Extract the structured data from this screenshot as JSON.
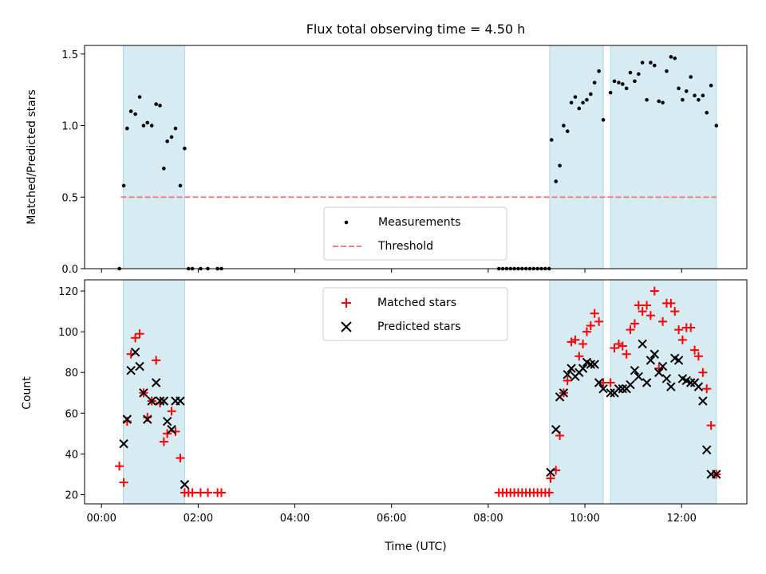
{
  "chart_data": [
    {
      "type": "scatter",
      "title": "Flux total observing time = 4.50 h",
      "xlabel": "",
      "ylabel": "Matched/Predicted stars",
      "xlim": [
        -0.35,
        13.35
      ],
      "ylim": [
        0.0,
        1.56
      ],
      "yticks": [
        0.0,
        0.5,
        1.0,
        1.5
      ],
      "ytick_labels": [
        "0.0",
        "0.5",
        "1.0",
        "1.5"
      ],
      "xticks": [
        0,
        2,
        4,
        6,
        8,
        10,
        12
      ],
      "grid": false,
      "legend": {
        "position": "bottom-center",
        "entries": [
          "Measurements",
          "Threshold"
        ]
      },
      "shaded_intervals": [
        [
          0.45,
          1.72
        ],
        [
          9.27,
          10.38
        ],
        [
          10.53,
          12.72
        ]
      ],
      "threshold": {
        "name": "Threshold",
        "y": 0.5,
        "x_range": [
          0.4,
          12.72
        ],
        "color": "#f08080",
        "style": "dashed"
      },
      "series": [
        {
          "name": "Measurements",
          "color": "#000000",
          "marker": "dot",
          "points": [
            [
              0.37,
              0.0
            ],
            [
              0.46,
              0.58
            ],
            [
              0.53,
              0.98
            ],
            [
              0.61,
              1.1
            ],
            [
              0.7,
              1.08
            ],
            [
              0.79,
              1.2
            ],
            [
              0.87,
              1.0
            ],
            [
              0.95,
              1.02
            ],
            [
              1.04,
              1.0
            ],
            [
              1.13,
              1.15
            ],
            [
              1.21,
              1.14
            ],
            [
              1.29,
              0.7
            ],
            [
              1.36,
              0.89
            ],
            [
              1.45,
              0.92
            ],
            [
              1.53,
              0.98
            ],
            [
              1.63,
              0.58
            ],
            [
              1.72,
              0.84
            ],
            [
              1.8,
              0.0
            ],
            [
              1.88,
              0.0
            ],
            [
              2.05,
              0.0
            ],
            [
              2.2,
              0.0
            ],
            [
              2.4,
              0.0
            ],
            [
              2.48,
              0.0
            ],
            [
              8.22,
              0.0
            ],
            [
              8.3,
              0.0
            ],
            [
              8.38,
              0.0
            ],
            [
              8.46,
              0.0
            ],
            [
              8.54,
              0.0
            ],
            [
              8.62,
              0.0
            ],
            [
              8.7,
              0.0
            ],
            [
              8.78,
              0.0
            ],
            [
              8.86,
              0.0
            ],
            [
              8.94,
              0.0
            ],
            [
              9.02,
              0.0
            ],
            [
              9.1,
              0.0
            ],
            [
              9.18,
              0.0
            ],
            [
              9.26,
              0.0
            ],
            [
              9.31,
              0.9
            ],
            [
              9.4,
              0.61
            ],
            [
              9.48,
              0.72
            ],
            [
              9.56,
              1.0
            ],
            [
              9.64,
              0.96
            ],
            [
              9.72,
              1.16
            ],
            [
              9.8,
              1.2
            ],
            [
              9.88,
              1.12
            ],
            [
              9.96,
              1.16
            ],
            [
              10.04,
              1.18
            ],
            [
              10.12,
              1.22
            ],
            [
              10.2,
              1.3
            ],
            [
              10.29,
              1.38
            ],
            [
              10.38,
              1.04
            ],
            [
              10.53,
              1.23
            ],
            [
              10.61,
              1.31
            ],
            [
              10.7,
              1.3
            ],
            [
              10.78,
              1.29
            ],
            [
              10.86,
              1.26
            ],
            [
              10.94,
              1.37
            ],
            [
              11.03,
              1.31
            ],
            [
              11.11,
              1.36
            ],
            [
              11.19,
              1.44
            ],
            [
              11.28,
              1.18
            ],
            [
              11.36,
              1.44
            ],
            [
              11.44,
              1.42
            ],
            [
              11.53,
              1.17
            ],
            [
              11.61,
              1.16
            ],
            [
              11.69,
              1.38
            ],
            [
              11.78,
              1.48
            ],
            [
              11.86,
              1.47
            ],
            [
              11.94,
              1.26
            ],
            [
              12.02,
              1.18
            ],
            [
              12.1,
              1.24
            ],
            [
              12.19,
              1.34
            ],
            [
              12.27,
              1.21
            ],
            [
              12.35,
              1.18
            ],
            [
              12.44,
              1.21
            ],
            [
              12.52,
              1.09
            ],
            [
              12.61,
              1.28
            ],
            [
              12.72,
              1.0
            ]
          ]
        }
      ]
    },
    {
      "type": "scatter",
      "title": "",
      "xlabel": "Time (UTC)",
      "ylabel": "Count",
      "xlim": [
        -0.35,
        13.35
      ],
      "ylim": [
        15.5,
        125.5
      ],
      "yticks": [
        20,
        40,
        60,
        80,
        100,
        120
      ],
      "ytick_labels": [
        "20",
        "40",
        "60",
        "80",
        "100",
        "120"
      ],
      "xticks": [
        0,
        2,
        4,
        6,
        8,
        10,
        12
      ],
      "xtick_labels": [
        "00:00",
        "02:00",
        "04:00",
        "06:00",
        "08:00",
        "10:00",
        "12:00"
      ],
      "grid": false,
      "legend": {
        "position": "top-center",
        "entries": [
          "Matched stars",
          "Predicted stars"
        ]
      },
      "shaded_intervals": [
        [
          0.45,
          1.72
        ],
        [
          9.27,
          10.38
        ],
        [
          10.53,
          12.72
        ]
      ],
      "series": [
        {
          "name": "Matched stars",
          "color": "#ff0000",
          "marker": "plus",
          "points": [
            [
              0.37,
              34
            ],
            [
              0.46,
              26
            ],
            [
              0.53,
              56
            ],
            [
              0.61,
              89
            ],
            [
              0.7,
              97
            ],
            [
              0.79,
              99
            ],
            [
              0.87,
              70
            ],
            [
              0.95,
              58
            ],
            [
              1.04,
              66
            ],
            [
              1.13,
              86
            ],
            [
              1.21,
              65
            ],
            [
              1.29,
              46
            ],
            [
              1.36,
              50
            ],
            [
              1.45,
              61
            ],
            [
              1.53,
              51
            ],
            [
              1.63,
              38
            ],
            [
              1.72,
              21
            ],
            [
              1.8,
              21
            ],
            [
              1.88,
              21
            ],
            [
              2.05,
              21
            ],
            [
              2.2,
              21
            ],
            [
              2.4,
              21
            ],
            [
              2.48,
              21
            ],
            [
              8.22,
              21
            ],
            [
              8.3,
              21
            ],
            [
              8.38,
              21
            ],
            [
              8.46,
              21
            ],
            [
              8.54,
              21
            ],
            [
              8.62,
              21
            ],
            [
              8.7,
              21
            ],
            [
              8.78,
              21
            ],
            [
              8.86,
              21
            ],
            [
              8.94,
              21
            ],
            [
              9.02,
              21
            ],
            [
              9.1,
              21
            ],
            [
              9.18,
              21
            ],
            [
              9.26,
              21
            ],
            [
              9.29,
              28
            ],
            [
              9.4,
              32
            ],
            [
              9.48,
              49
            ],
            [
              9.56,
              70
            ],
            [
              9.64,
              76
            ],
            [
              9.72,
              95
            ],
            [
              9.8,
              96
            ],
            [
              9.88,
              88
            ],
            [
              9.96,
              94
            ],
            [
              10.04,
              100
            ],
            [
              10.12,
              103
            ],
            [
              10.2,
              109
            ],
            [
              10.29,
              105
            ],
            [
              10.38,
              75
            ],
            [
              10.53,
              75
            ],
            [
              10.61,
              92
            ],
            [
              10.7,
              94
            ],
            [
              10.78,
              93
            ],
            [
              10.86,
              89
            ],
            [
              10.94,
              101
            ],
            [
              11.03,
              104
            ],
            [
              11.11,
              113
            ],
            [
              11.19,
              110
            ],
            [
              11.28,
              113
            ],
            [
              11.36,
              108
            ],
            [
              11.44,
              120
            ],
            [
              11.53,
              82
            ],
            [
              11.61,
              105
            ],
            [
              11.69,
              114
            ],
            [
              11.78,
              114
            ],
            [
              11.86,
              110
            ],
            [
              11.94,
              101
            ],
            [
              12.02,
              96
            ],
            [
              12.1,
              102
            ],
            [
              12.19,
              102
            ],
            [
              12.27,
              91
            ],
            [
              12.35,
              88
            ],
            [
              12.44,
              80
            ],
            [
              12.52,
              72
            ],
            [
              12.61,
              54
            ],
            [
              12.72,
              30
            ]
          ]
        },
        {
          "name": "Predicted stars",
          "color": "#000000",
          "marker": "x",
          "points": [
            [
              0.46,
              45
            ],
            [
              0.53,
              57
            ],
            [
              0.61,
              81
            ],
            [
              0.7,
              90
            ],
            [
              0.79,
              83
            ],
            [
              0.87,
              70
            ],
            [
              0.95,
              57
            ],
            [
              1.04,
              66
            ],
            [
              1.13,
              75
            ],
            [
              1.21,
              66
            ],
            [
              1.29,
              66
            ],
            [
              1.36,
              56
            ],
            [
              1.45,
              52
            ],
            [
              1.53,
              66
            ],
            [
              1.63,
              66
            ],
            [
              1.72,
              25
            ],
            [
              9.29,
              31
            ],
            [
              9.4,
              52
            ],
            [
              9.48,
              68
            ],
            [
              9.56,
              70
            ],
            [
              9.64,
              79
            ],
            [
              9.72,
              82
            ],
            [
              9.8,
              78
            ],
            [
              9.88,
              80
            ],
            [
              9.96,
              82
            ],
            [
              10.04,
              85
            ],
            [
              10.12,
              84
            ],
            [
              10.2,
              84
            ],
            [
              10.29,
              75
            ],
            [
              10.38,
              72
            ],
            [
              10.53,
              70
            ],
            [
              10.61,
              70
            ],
            [
              10.7,
              72
            ],
            [
              10.78,
              72
            ],
            [
              10.86,
              72
            ],
            [
              10.94,
              74
            ],
            [
              11.03,
              81
            ],
            [
              11.11,
              78
            ],
            [
              11.19,
              94
            ],
            [
              11.28,
              75
            ],
            [
              11.36,
              86
            ],
            [
              11.44,
              89
            ],
            [
              11.53,
              80
            ],
            [
              11.61,
              83
            ],
            [
              11.69,
              77
            ],
            [
              11.78,
              73
            ],
            [
              11.86,
              87
            ],
            [
              11.94,
              86
            ],
            [
              12.02,
              77
            ],
            [
              12.1,
              76
            ],
            [
              12.19,
              75
            ],
            [
              12.27,
              75
            ],
            [
              12.35,
              73
            ],
            [
              12.44,
              66
            ],
            [
              12.52,
              42
            ],
            [
              12.61,
              30
            ],
            [
              12.72,
              30
            ]
          ]
        }
      ]
    }
  ]
}
